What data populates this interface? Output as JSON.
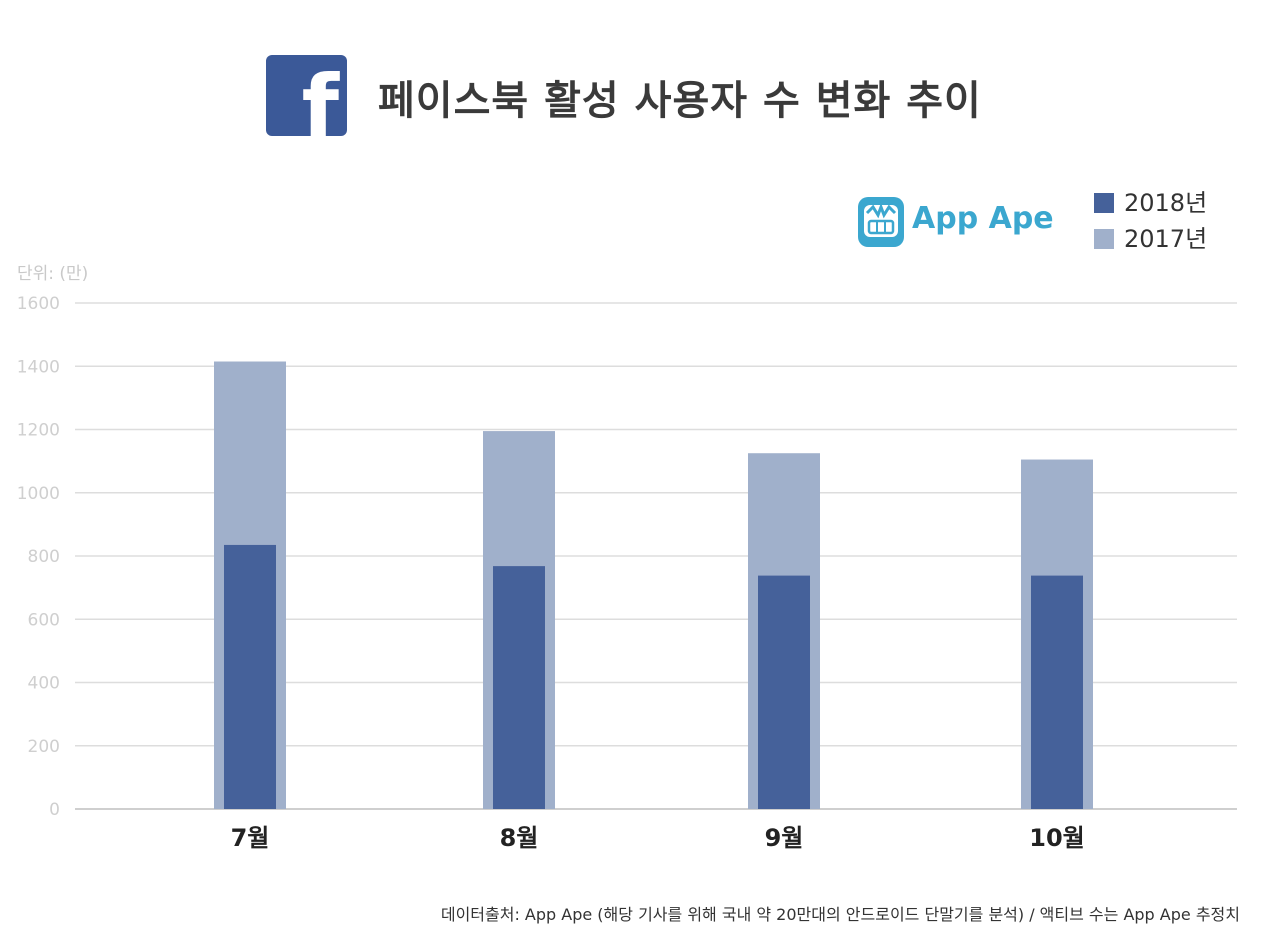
{
  "header": {
    "logo_letter": "f",
    "title": "페이스북 활성 사용자 수 변화 추이"
  },
  "brand": {
    "name": "App Ape",
    "color": "#3ba7cf"
  },
  "unit_label": "단위: (만)",
  "source_text": "데이터출처: App Ape (해당 기사를 위해 국내 약 20만대의 안드로이드 단말기를 분석) / 액티브 수는 App Ape 추정치",
  "colors": {
    "facebook": "#3b5998",
    "series_2018": "#45619a",
    "series_2017": "#a0b0cb",
    "grid": "#dddddd"
  },
  "chart_data": {
    "type": "bar",
    "categories": [
      "7월",
      "8월",
      "9월",
      "10월"
    ],
    "series": [
      {
        "name": "2017년",
        "values": [
          1415,
          1195,
          1125,
          1105
        ]
      },
      {
        "name": "2018년",
        "values": [
          835,
          768,
          738,
          738
        ]
      }
    ],
    "legend": [
      "2018년",
      "2017년"
    ],
    "legend_position": "top-right",
    "yticks": [
      0,
      200,
      400,
      600,
      800,
      1000,
      1200,
      1400,
      1600
    ],
    "ylim": [
      0,
      1600
    ],
    "grid": true
  }
}
